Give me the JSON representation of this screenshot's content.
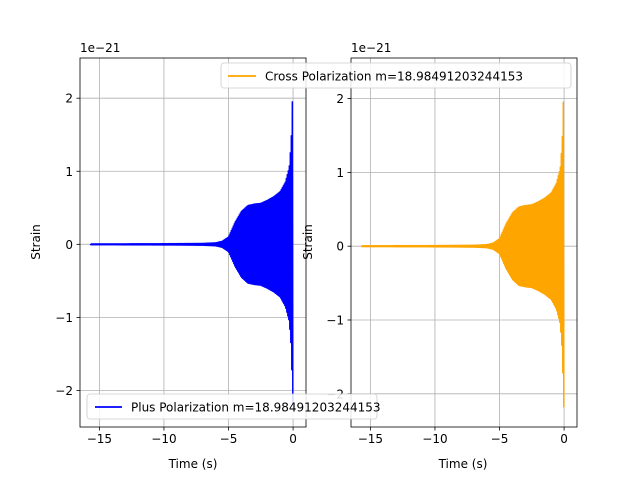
{
  "chart_data": [
    {
      "type": "line",
      "title": "",
      "xlabel": "Time (s)",
      "ylabel": "Strain",
      "y_offset_label": "1e−21",
      "xlim": [
        -16.5,
        1.0
      ],
      "ylim": [
        -2.5,
        2.55
      ],
      "xticks": [
        -15,
        -10,
        -5,
        0
      ],
      "xtick_labels": [
        "−15",
        "−10",
        "−5",
        "0"
      ],
      "yticks": [
        -2,
        -1,
        0,
        1,
        2
      ],
      "ytick_labels": [
        "−2",
        "−1",
        "0",
        "1",
        "2"
      ],
      "grid": true,
      "legend": {
        "placement": "lower-left",
        "label": "Plus Polarization m=18.98491203244153"
      },
      "series": [
        {
          "name": "Plus Polarization m=18.98491203244153",
          "color": "#0000ff",
          "x_start": -15.7,
          "x_end": 0.0,
          "envelope_t": [
            -15.7,
            -10.0,
            -7.0,
            -6.0,
            -5.5,
            -5.0,
            -4.5,
            -4.0,
            -3.5,
            -3.0,
            -2.5,
            -2.0,
            -1.5,
            -1.0,
            -0.6,
            -0.3,
            -0.15,
            -0.05,
            0.0
          ],
          "envelope_amp": [
            0.005,
            0.008,
            0.012,
            0.02,
            0.04,
            0.1,
            0.3,
            0.45,
            0.53,
            0.55,
            0.56,
            0.6,
            0.65,
            0.72,
            0.85,
            1.05,
            1.4,
            2.0,
            2.3
          ]
        }
      ]
    },
    {
      "type": "line",
      "title": "",
      "xlabel": "Time (s)",
      "ylabel": "Strain",
      "y_offset_label": "1e−21",
      "xlim": [
        -16.5,
        1.0
      ],
      "ylim": [
        -2.45,
        2.55
      ],
      "xticks": [
        -15,
        -10,
        -5,
        0
      ],
      "xtick_labels": [
        "−15",
        "−10",
        "−5",
        "0"
      ],
      "yticks": [
        -2,
        -1,
        0,
        1,
        2
      ],
      "ytick_labels": [
        "−2",
        "−1",
        "0",
        "1",
        "2"
      ],
      "grid": true,
      "legend": {
        "placement": "top-right",
        "label": "Cross Polarization m=18.98491203244153"
      },
      "series": [
        {
          "name": "Cross Polarization m=18.98491203244153",
          "color": "#ffa500",
          "x_start": -15.7,
          "x_end": 0.0,
          "envelope_t": [
            -15.7,
            -10.0,
            -7.0,
            -6.0,
            -5.5,
            -5.0,
            -4.5,
            -4.0,
            -3.5,
            -3.0,
            -2.5,
            -2.0,
            -1.5,
            -1.0,
            -0.6,
            -0.3,
            -0.15,
            -0.05,
            0.0
          ],
          "envelope_amp": [
            0.005,
            0.008,
            0.012,
            0.02,
            0.04,
            0.1,
            0.3,
            0.45,
            0.53,
            0.55,
            0.56,
            0.6,
            0.65,
            0.72,
            0.85,
            1.05,
            1.4,
            2.0,
            2.3
          ]
        }
      ]
    }
  ]
}
